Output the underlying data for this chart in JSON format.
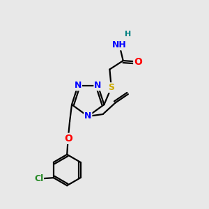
{
  "background_color": "#e8e8e8",
  "atom_colors": {
    "N": "#0000ff",
    "O": "#ff0000",
    "S": "#ccaa00",
    "Cl": "#228822",
    "C": "#000000",
    "H": "#008080"
  },
  "bond_color": "#000000",
  "figsize": [
    3.0,
    3.0
  ],
  "dpi": 100,
  "xlim": [
    0,
    10
  ],
  "ylim": [
    0,
    10
  ]
}
